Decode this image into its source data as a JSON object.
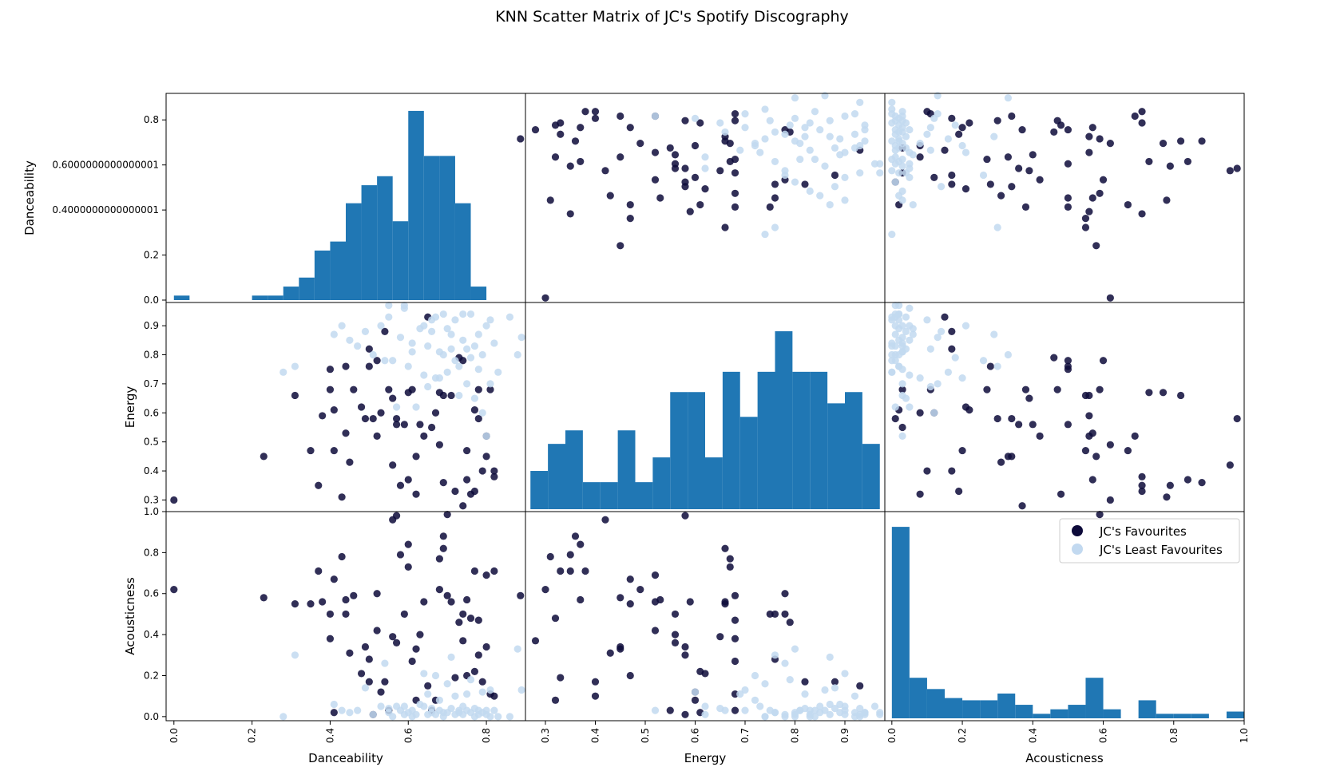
{
  "title": "KNN Scatter Matrix of JC's Spotify Discography",
  "colors": {
    "favourites": "#0d0a3a",
    "least": "#c2d9f0",
    "hist": "#2077b4"
  },
  "chart_data": {
    "type": "scatter",
    "title": "KNN Scatter Matrix of JC's Spotify Discography",
    "variables": [
      "Danceability",
      "Energy",
      "Acousticness"
    ],
    "legend": {
      "placement": "upper-right of Acousticness histogram panel",
      "entries": [
        "JC's Favourites",
        "JC's Least Favourites"
      ]
    },
    "ranges": {
      "Danceability": [
        -0.02,
        0.9
      ],
      "Energy": [
        0.26,
        0.98
      ],
      "Acousticness": [
        -0.02,
        1.0
      ]
    },
    "histogram_axis": [
      0,
      0.9
    ],
    "ticks": {
      "Danceability_x": [
        "0.0",
        "0.2",
        "0.4",
        "0.6",
        "0.8"
      ],
      "Danceability_y": [
        "0.0",
        "0.2",
        "0.4000000000000001",
        "0.6000000000000001",
        "0.8"
      ],
      "Energy": [
        "0.3",
        "0.4",
        "0.5",
        "0.6",
        "0.7",
        "0.8",
        "0.9"
      ],
      "Acousticness": [
        "0.0",
        "0.2",
        "0.4",
        "0.6",
        "0.8",
        "1.0"
      ]
    },
    "histograms": {
      "Danceability": {
        "edges": [
          0,
          0.04,
          0.08,
          0.12,
          0.16,
          0.2,
          0.24,
          0.28,
          0.32,
          0.36,
          0.4,
          0.44,
          0.48,
          0.52,
          0.56,
          0.6,
          0.64,
          0.68,
          0.72,
          0.76,
          0.8,
          0.84
        ],
        "heights": [
          0.02,
          0,
          0,
          0,
          0,
          0.02,
          0.02,
          0.06,
          0.1,
          0.22,
          0.26,
          0.43,
          0.51,
          0.55,
          0.35,
          0.84,
          0.64,
          0.64,
          0.43,
          0.06,
          0
        ]
      },
      "Energy": {
        "edges": [
          0.27,
          0.305,
          0.34,
          0.375,
          0.41,
          0.445,
          0.48,
          0.515,
          0.55,
          0.585,
          0.62,
          0.655,
          0.69,
          0.725,
          0.76,
          0.795,
          0.83,
          0.865,
          0.9,
          0.935,
          0.97
        ],
        "heights": [
          0.17,
          0.29,
          0.35,
          0.12,
          0.12,
          0.35,
          0.12,
          0.23,
          0.52,
          0.52,
          0.23,
          0.61,
          0.41,
          0.61,
          0.79,
          0.61,
          0.61,
          0.47,
          0.52,
          0.29
        ]
      },
      "Acousticness": {
        "edges": [
          0,
          0.05,
          0.1,
          0.15,
          0.2,
          0.25,
          0.3,
          0.35,
          0.4,
          0.45,
          0.5,
          0.55,
          0.6,
          0.65,
          0.7,
          0.75,
          0.8,
          0.85,
          0.9,
          0.95,
          1.0
        ],
        "heights": [
          0.85,
          0.18,
          0.13,
          0.09,
          0.08,
          0.08,
          0.11,
          0.06,
          0.02,
          0.04,
          0.06,
          0.18,
          0.04,
          0.0,
          0.08,
          0.02,
          0.02,
          0.02,
          0,
          0.03
        ]
      }
    },
    "series": [
      {
        "name": "JC's Favourites",
        "points": [
          {
            "d": 0.0,
            "e": 0.3,
            "a": 0.62
          },
          {
            "d": 0.23,
            "e": 0.45,
            "a": 0.58
          },
          {
            "d": 0.31,
            "e": 0.66,
            "a": 0.55
          },
          {
            "d": 0.35,
            "e": 0.47,
            "a": 0.55
          },
          {
            "d": 0.37,
            "e": 0.35,
            "a": 0.71
          },
          {
            "d": 0.38,
            "e": 0.59,
            "a": 0.56
          },
          {
            "d": 0.4,
            "e": 0.75,
            "a": 0.5
          },
          {
            "d": 0.4,
            "e": 0.68,
            "a": 0.38
          },
          {
            "d": 0.41,
            "e": 0.47,
            "a": 0.67
          },
          {
            "d": 0.41,
            "e": 0.61,
            "a": 0.02
          },
          {
            "d": 0.43,
            "e": 0.31,
            "a": 0.78
          },
          {
            "d": 0.44,
            "e": 0.53,
            "a": 0.57
          },
          {
            "d": 0.44,
            "e": 0.76,
            "a": 0.5
          },
          {
            "d": 0.45,
            "e": 0.43,
            "a": 0.31
          },
          {
            "d": 0.46,
            "e": 0.68,
            "a": 0.59
          },
          {
            "d": 0.48,
            "e": 0.62,
            "a": 0.21
          },
          {
            "d": 0.49,
            "e": 0.58,
            "a": 0.34
          },
          {
            "d": 0.5,
            "e": 0.82,
            "a": 0.17
          },
          {
            "d": 0.5,
            "e": 0.76,
            "a": 0.28
          },
          {
            "d": 0.51,
            "e": 0.58,
            "a": 0.01
          },
          {
            "d": 0.52,
            "e": 0.52,
            "a": 0.42
          },
          {
            "d": 0.52,
            "e": 0.78,
            "a": 0.6
          },
          {
            "d": 0.53,
            "e": 0.6,
            "a": 0.12
          },
          {
            "d": 0.54,
            "e": 0.88,
            "a": 0.17
          },
          {
            "d": 0.55,
            "e": 0.68,
            "a": 0.03
          },
          {
            "d": 0.56,
            "e": 0.65,
            "a": 0.39
          },
          {
            "d": 0.56,
            "e": 0.42,
            "a": 0.96
          },
          {
            "d": 0.57,
            "e": 0.58,
            "a": 0.98
          },
          {
            "d": 0.57,
            "e": 0.56,
            "a": 0.36
          },
          {
            "d": 0.58,
            "e": 0.35,
            "a": 0.79
          },
          {
            "d": 0.59,
            "e": 0.56,
            "a": 0.5
          },
          {
            "d": 0.6,
            "e": 0.37,
            "a": 0.84
          },
          {
            "d": 0.6,
            "e": 0.67,
            "a": 0.73
          },
          {
            "d": 0.61,
            "e": 0.68,
            "a": 0.27
          },
          {
            "d": 0.62,
            "e": 0.32,
            "a": 0.08
          },
          {
            "d": 0.62,
            "e": 0.45,
            "a": 0.33
          },
          {
            "d": 0.63,
            "e": 0.56,
            "a": 0.4
          },
          {
            "d": 0.64,
            "e": 0.52,
            "a": 0.56
          },
          {
            "d": 0.65,
            "e": 0.93,
            "a": 0.15
          },
          {
            "d": 0.66,
            "e": 0.55,
            "a": 0.03
          },
          {
            "d": 0.67,
            "e": 0.6,
            "a": 0.08
          },
          {
            "d": 0.68,
            "e": 0.67,
            "a": 0.77
          },
          {
            "d": 0.68,
            "e": 0.49,
            "a": 0.62
          },
          {
            "d": 0.69,
            "e": 0.36,
            "a": 0.88
          },
          {
            "d": 0.69,
            "e": 0.66,
            "a": 0.82
          },
          {
            "d": 0.7,
            "e": 0.25,
            "a": 0.59
          },
          {
            "d": 0.71,
            "e": 0.66,
            "a": 0.56
          },
          {
            "d": 0.72,
            "e": 0.33,
            "a": 0.19
          },
          {
            "d": 0.73,
            "e": 0.79,
            "a": 0.46
          },
          {
            "d": 0.74,
            "e": 0.28,
            "a": 0.37
          },
          {
            "d": 0.74,
            "e": 0.78,
            "a": 0.5
          },
          {
            "d": 0.75,
            "e": 0.47,
            "a": 0.2
          },
          {
            "d": 0.75,
            "e": 0.37,
            "a": 0.57
          },
          {
            "d": 0.76,
            "e": 0.32,
            "a": 0.48
          },
          {
            "d": 0.77,
            "e": 0.61,
            "a": 0.22
          },
          {
            "d": 0.77,
            "e": 0.33,
            "a": 0.71
          },
          {
            "d": 0.78,
            "e": 0.58,
            "a": 0.3
          },
          {
            "d": 0.78,
            "e": 0.68,
            "a": 0.47
          },
          {
            "d": 0.79,
            "e": 0.4,
            "a": 0.17
          },
          {
            "d": 0.8,
            "e": 0.45,
            "a": 0.34
          },
          {
            "d": 0.8,
            "e": 0.52,
            "a": 0.69
          },
          {
            "d": 0.81,
            "e": 0.68,
            "a": 0.11
          },
          {
            "d": 0.82,
            "e": 0.38,
            "a": 0.71
          },
          {
            "d": 0.82,
            "e": 0.4,
            "a": 0.1
          }
        ]
      },
      {
        "name": "JC's Least Favourites",
        "points": [
          {
            "d": 0.28,
            "e": 0.74,
            "a": 0.0
          },
          {
            "d": 0.31,
            "e": 0.76,
            "a": 0.3
          },
          {
            "d": 0.41,
            "e": 0.87,
            "a": 0.06
          },
          {
            "d": 0.43,
            "e": 0.9,
            "a": 0.03
          },
          {
            "d": 0.45,
            "e": 0.85,
            "a": 0.02
          },
          {
            "d": 0.47,
            "e": 0.83,
            "a": 0.03
          },
          {
            "d": 0.49,
            "e": 0.88,
            "a": 0.14
          },
          {
            "d": 0.51,
            "e": 0.8,
            "a": 0.01
          },
          {
            "d": 0.53,
            "e": 0.9,
            "a": 0.05
          },
          {
            "d": 0.54,
            "e": 0.78,
            "a": 0.26
          },
          {
            "d": 0.55,
            "e": 0.97,
            "a": 0.02
          },
          {
            "d": 0.55,
            "e": 0.93,
            "a": 0.04
          },
          {
            "d": 0.56,
            "e": 0.78,
            "a": 0.0
          },
          {
            "d": 0.57,
            "e": 0.62,
            "a": 0.05
          },
          {
            "d": 0.58,
            "e": 0.86,
            "a": 0.03
          },
          {
            "d": 0.59,
            "e": 0.97,
            "a": 0.01
          },
          {
            "d": 0.59,
            "e": 0.96,
            "a": 0.05
          },
          {
            "d": 0.6,
            "e": 0.76,
            "a": 0.02
          },
          {
            "d": 0.61,
            "e": 0.84,
            "a": 0.0
          },
          {
            "d": 0.61,
            "e": 0.81,
            "a": 0.03
          },
          {
            "d": 0.62,
            "e": 0.62,
            "a": 0.01
          },
          {
            "d": 0.63,
            "e": 0.89,
            "a": 0.06
          },
          {
            "d": 0.64,
            "e": 0.9,
            "a": 0.21
          },
          {
            "d": 0.64,
            "e": 0.73,
            "a": 0.05
          },
          {
            "d": 0.65,
            "e": 0.83,
            "a": 0.01
          },
          {
            "d": 0.65,
            "e": 0.69,
            "a": 0.11
          },
          {
            "d": 0.66,
            "e": 0.92,
            "a": 0.02
          },
          {
            "d": 0.66,
            "e": 0.88,
            "a": 0.04
          },
          {
            "d": 0.67,
            "e": 0.72,
            "a": 0.2
          },
          {
            "d": 0.67,
            "e": 0.93,
            "a": 0.01
          },
          {
            "d": 0.68,
            "e": 0.81,
            "a": 0.03
          },
          {
            "d": 0.68,
            "e": 0.72,
            "a": 0.08
          },
          {
            "d": 0.69,
            "e": 0.94,
            "a": 0.02
          },
          {
            "d": 0.69,
            "e": 0.8,
            "a": 0.0
          },
          {
            "d": 0.7,
            "e": 0.74,
            "a": 0.16
          },
          {
            "d": 0.7,
            "e": 0.89,
            "a": 0.02
          },
          {
            "d": 0.71,
            "e": 0.87,
            "a": 0.29
          },
          {
            "d": 0.71,
            "e": 0.82,
            "a": 0.04
          },
          {
            "d": 0.72,
            "e": 0.78,
            "a": 0.01
          },
          {
            "d": 0.72,
            "e": 0.92,
            "a": 0.1
          },
          {
            "d": 0.73,
            "e": 0.66,
            "a": 0.03
          },
          {
            "d": 0.73,
            "e": 0.76,
            "a": 0.02
          },
          {
            "d": 0.74,
            "e": 0.94,
            "a": 0.01
          },
          {
            "d": 0.74,
            "e": 0.85,
            "a": 0.05
          },
          {
            "d": 0.75,
            "e": 0.82,
            "a": 0.11
          },
          {
            "d": 0.75,
            "e": 0.7,
            "a": 0.03
          },
          {
            "d": 0.76,
            "e": 0.94,
            "a": 0.02
          },
          {
            "d": 0.76,
            "e": 0.79,
            "a": 0.18
          },
          {
            "d": 0.77,
            "e": 0.83,
            "a": 0.0
          },
          {
            "d": 0.77,
            "e": 0.65,
            "a": 0.04
          },
          {
            "d": 0.78,
            "e": 0.87,
            "a": 0.01
          },
          {
            "d": 0.78,
            "e": 0.75,
            "a": 0.03
          },
          {
            "d": 0.79,
            "e": 0.8,
            "a": 0.02
          },
          {
            "d": 0.79,
            "e": 0.6,
            "a": 0.12
          },
          {
            "d": 0.8,
            "e": 0.9,
            "a": 0.01
          },
          {
            "d": 0.8,
            "e": 0.52,
            "a": 0.03
          },
          {
            "d": 0.81,
            "e": 0.92,
            "a": 0.0
          },
          {
            "d": 0.81,
            "e": 0.7,
            "a": 0.13
          },
          {
            "d": 0.82,
            "e": 0.84,
            "a": 0.03
          },
          {
            "d": 0.83,
            "e": 0.74,
            "a": 0.0
          },
          {
            "d": 0.88,
            "e": 0.8,
            "a": 0.33
          },
          {
            "d": 0.89,
            "e": 0.86,
            "a": 0.13
          },
          {
            "d": 0.86,
            "e": 0.93,
            "a": 0.0
          }
        ]
      }
    ]
  }
}
